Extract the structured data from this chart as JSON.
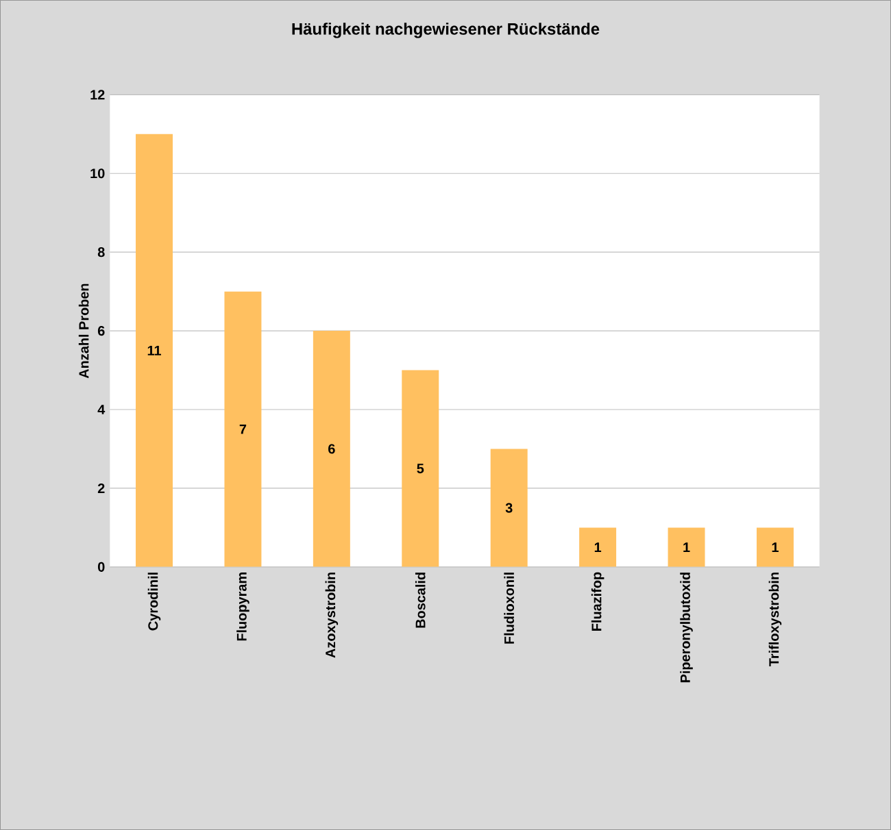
{
  "chart_data": {
    "type": "bar",
    "title": "Häufigkeit nachgewiesener Rückstände",
    "ylabel": "Anzahl Proben",
    "categories": [
      "Cyrodinil",
      "Fluopyram",
      "Azoxystrobin",
      "Boscalid",
      "Fludioxonil",
      "Fluazifop",
      "Piperonylbutoxid",
      "Trifloxystrobin"
    ],
    "values": [
      11,
      7,
      6,
      5,
      3,
      1,
      1,
      1
    ],
    "color": "#ffc060",
    "ylim": [
      0,
      12
    ],
    "yticks": [
      0,
      2,
      4,
      6,
      8,
      10,
      12
    ],
    "grid": "y",
    "data_labels": true
  }
}
